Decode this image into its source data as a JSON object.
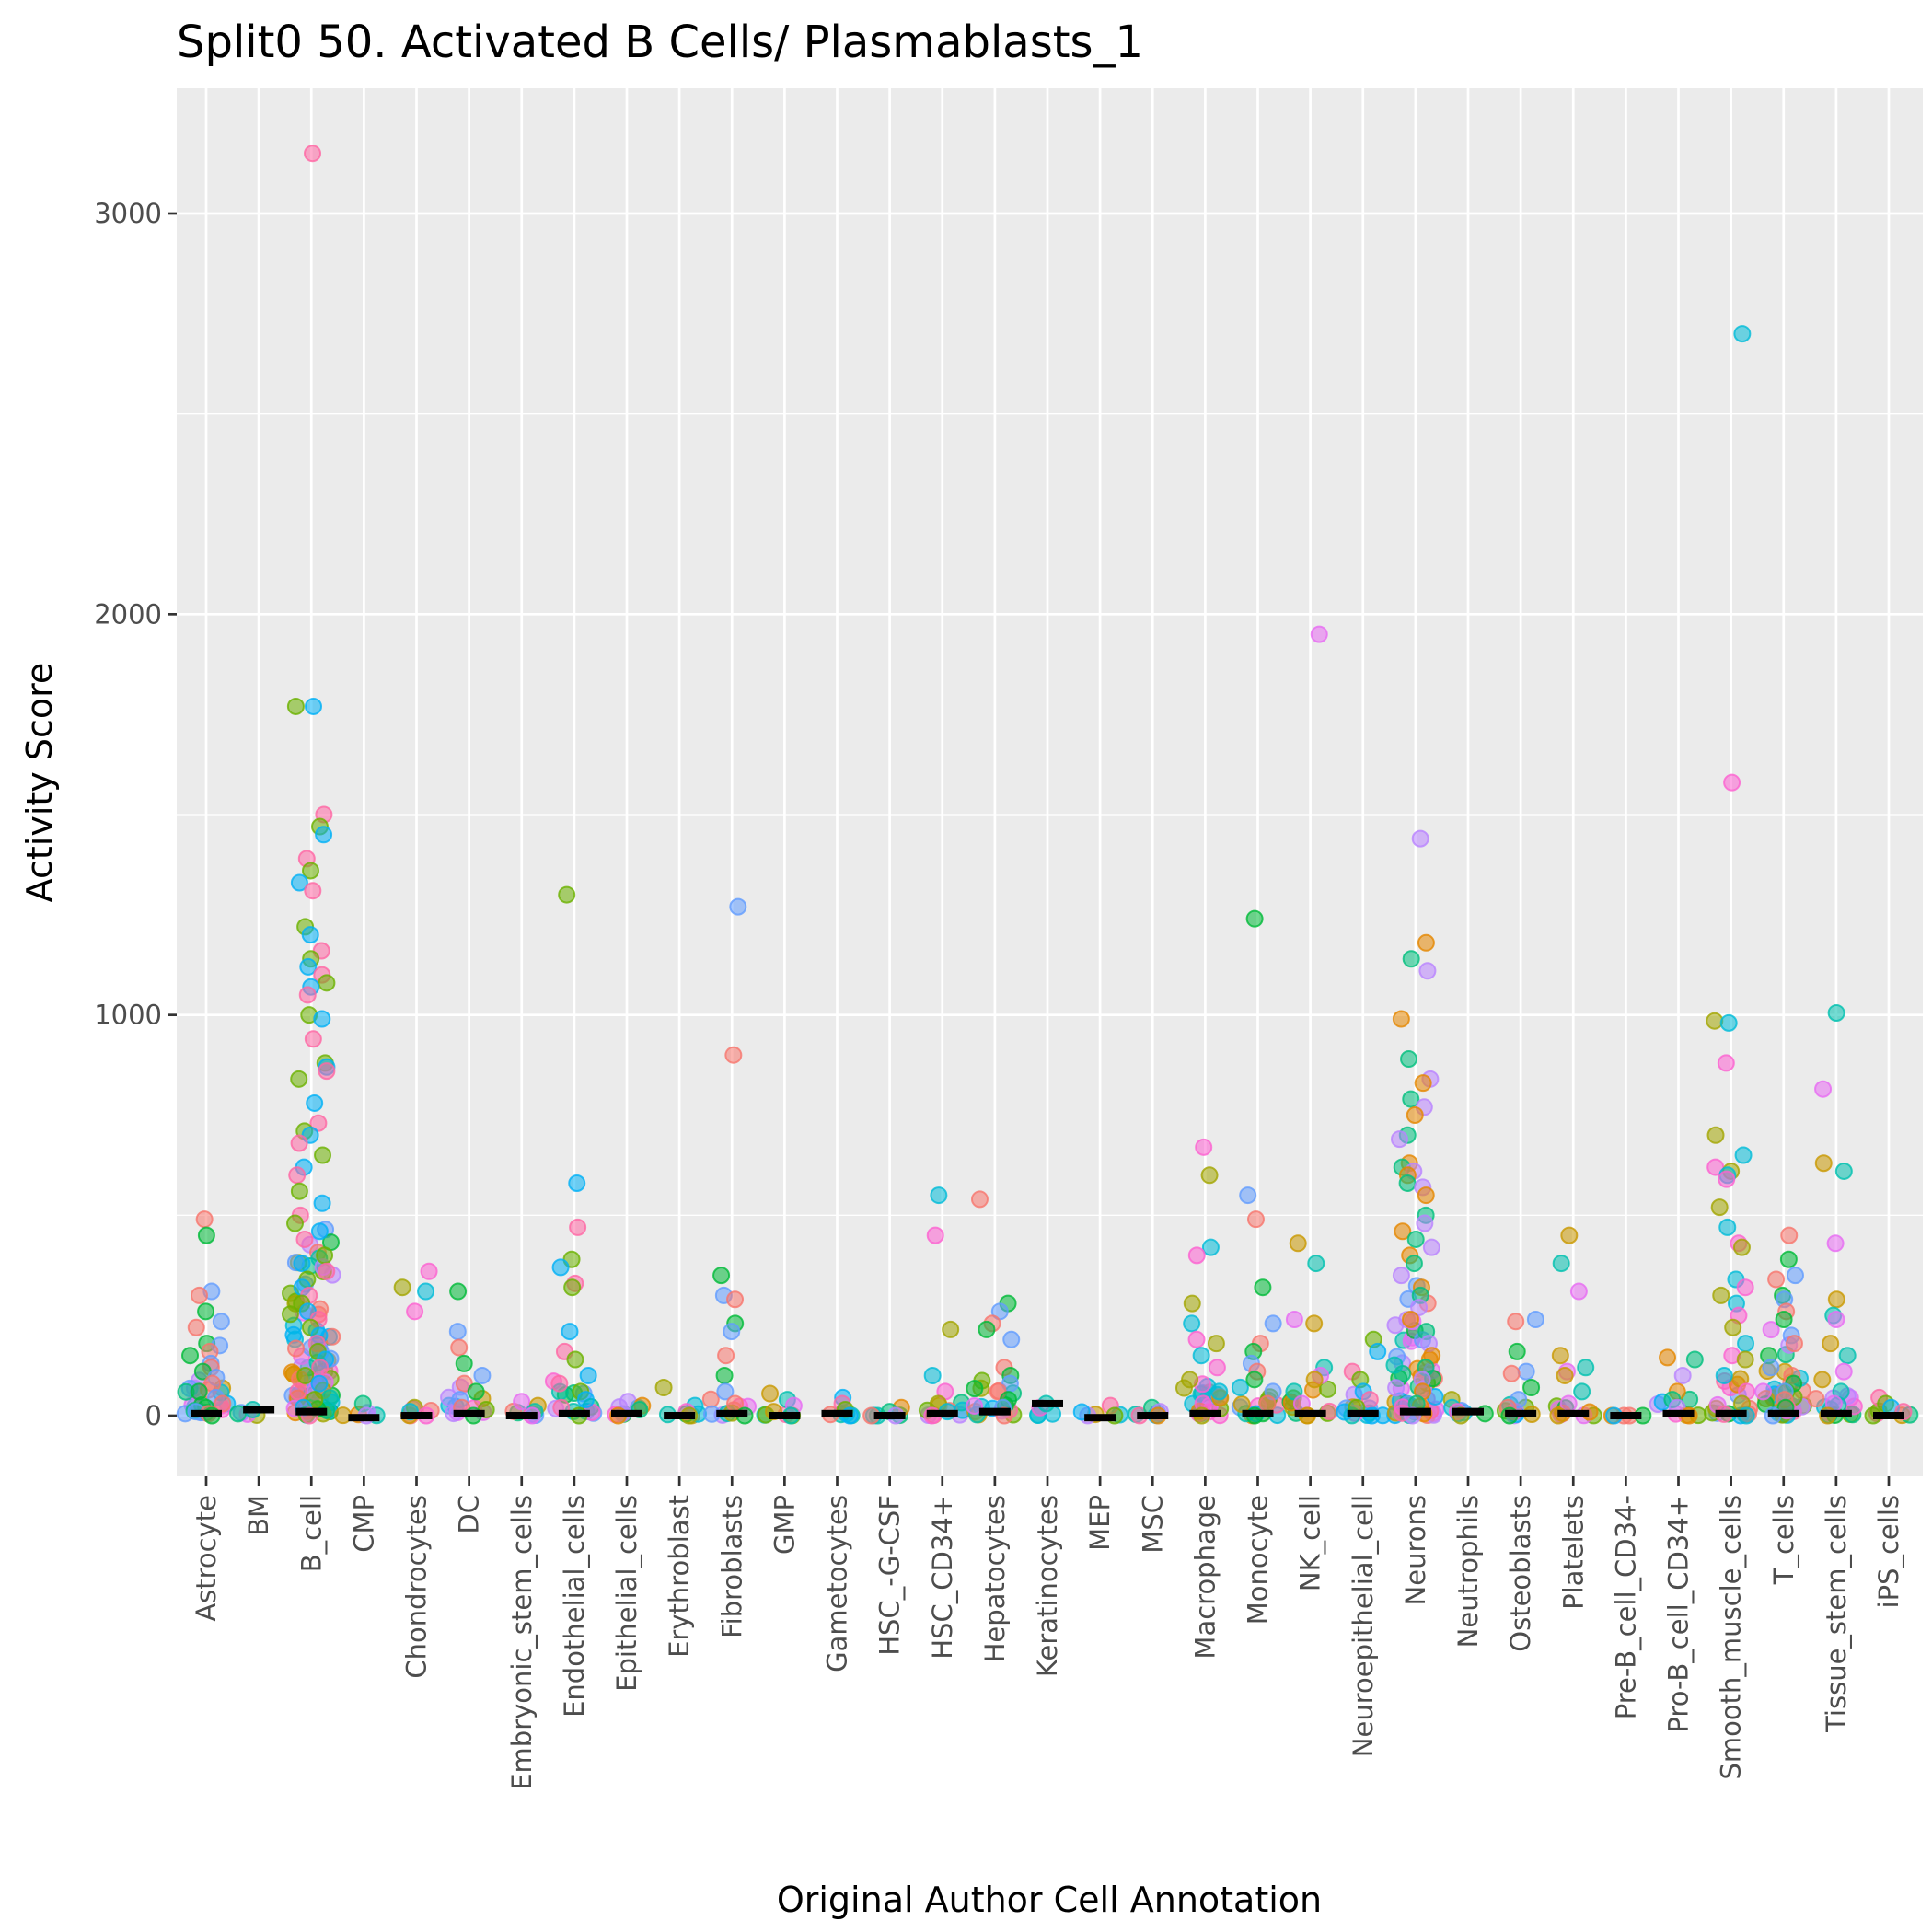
{
  "chart_data": {
    "type": "scatter",
    "title": "Split0 50. Activated B Cells/ Plasmablasts_1",
    "xlabel": "Original Author Cell Annotation",
    "ylabel": "Activity Score",
    "ylim": [
      -150,
      3200
    ],
    "yticks": [
      0,
      1000,
      2000,
      3000
    ],
    "ytick_labels": [
      "0",
      "1000",
      "2000",
      "3000"
    ],
    "grid": true,
    "legend": "none",
    "categories": [
      "Astrocyte",
      "BM",
      "B_cell",
      "CMP",
      "Chondrocytes",
      "DC",
      "Embryonic_stem_cells",
      "Endothelial_cells",
      "Epithelial_cells",
      "Erythroblast",
      "Fibroblasts",
      "GMP",
      "Gametocytes",
      "HSC_-G-CSF",
      "HSC_CD34+",
      "Hepatocytes",
      "Keratinocytes",
      "MEP",
      "MSC",
      "Macrophage",
      "Monocyte",
      "NK_cell",
      "Neuroepithelial_cell",
      "Neurons",
      "Neutrophils",
      "Osteoblasts",
      "Platelets",
      "Pre-B_cell_CD34-",
      "Pro-B_cell_CD34+",
      "Smooth_muscle_cells",
      "T_cells",
      "Tissue_stem_cells",
      "iPS_cells"
    ],
    "median_markers": [
      5,
      15,
      10,
      -5,
      0,
      5,
      0,
      5,
      5,
      0,
      5,
      0,
      5,
      0,
      5,
      10,
      30,
      -5,
      0,
      5,
      5,
      5,
      5,
      10,
      10,
      5,
      5,
      0,
      5,
      5,
      5,
      5,
      0
    ],
    "bulk_height": [
      150,
      15,
      600,
      20,
      30,
      80,
      30,
      90,
      30,
      20,
      60,
      30,
      30,
      20,
      60,
      120,
      30,
      10,
      20,
      150,
      100,
      80,
      80,
      400,
      20,
      60,
      60,
      0,
      50,
      120,
      250,
      100,
      20
    ],
    "palette": [
      "#F8766D",
      "#E58700",
      "#C99800",
      "#A3A500",
      "#6BB100",
      "#00BA38",
      "#00BF7D",
      "#00C0AF",
      "#00BCD8",
      "#00B0F6",
      "#619CFF",
      "#B983FF",
      "#E76BF3",
      "#FD61D1",
      "#FF67A4"
    ],
    "series": [
      {
        "name": "Astrocyte",
        "values": [
          490,
          450,
          310,
          300,
          260,
          235,
          220,
          180,
          175,
          160,
          150,
          130,
          120,
          110,
          95,
          80,
          60,
          45,
          30,
          20,
          10,
          5,
          0
        ]
      },
      {
        "name": "BM",
        "values": [
          15
        ]
      },
      {
        "name": "B_cell",
        "values": [
          3150,
          1770,
          1770,
          1500,
          1470,
          1450,
          1390,
          1360,
          1330,
          1310,
          1220,
          1200,
          1160,
          1140,
          1120,
          1100,
          1080,
          1070,
          1050,
          1000,
          990,
          940,
          880,
          870,
          860,
          840,
          780,
          730,
          710,
          700,
          680,
          650,
          620,
          600,
          560,
          530,
          500,
          480,
          460,
          440,
          400,
          380,
          360,
          340,
          320,
          300,
          280,
          260,
          240,
          220,
          200,
          180,
          160,
          140,
          120,
          100,
          80,
          60,
          40,
          20,
          0
        ]
      },
      {
        "name": "CMP",
        "values": [
          30,
          0
        ]
      },
      {
        "name": "Chondrocytes",
        "values": [
          360,
          320,
          310,
          260,
          20,
          10,
          0
        ]
      },
      {
        "name": "DC",
        "values": [
          310,
          210,
          170,
          130,
          100,
          80,
          60,
          40,
          20,
          0
        ]
      },
      {
        "name": "Embryonic_stem_cells",
        "values": [
          35,
          25,
          10,
          0
        ]
      },
      {
        "name": "Endothelial_cells",
        "values": [
          1300,
          580,
          470,
          390,
          370,
          330,
          320,
          210,
          160,
          140,
          100,
          80,
          60,
          40,
          20,
          0
        ]
      },
      {
        "name": "Epithelial_cells",
        "values": [
          35,
          25,
          15,
          5,
          0
        ]
      },
      {
        "name": "Erythroblast",
        "values": [
          70,
          25,
          10,
          0
        ]
      },
      {
        "name": "Fibroblasts",
        "values": [
          1270,
          900,
          350,
          300,
          290,
          230,
          210,
          150,
          100,
          60,
          30,
          0
        ]
      },
      {
        "name": "GMP",
        "values": [
          55,
          40,
          25,
          10,
          0
        ]
      },
      {
        "name": "Gametocytes",
        "values": [
          45,
          30,
          15,
          0
        ]
      },
      {
        "name": "HSC_-G-CSF",
        "values": [
          20,
          10,
          0
        ]
      },
      {
        "name": "HSC_CD34+",
        "values": [
          550,
          450,
          215,
          100,
          60,
          30,
          10,
          0
        ]
      },
      {
        "name": "Hepatocytes",
        "values": [
          540,
          280,
          260,
          230,
          215,
          190,
          120,
          100,
          80,
          60,
          40,
          20,
          0
        ]
      },
      {
        "name": "Keratinocytes",
        "values": [
          30
        ]
      },
      {
        "name": "MEP",
        "values": [
          25,
          0
        ]
      },
      {
        "name": "MSC",
        "values": [
          20,
          10,
          0
        ]
      },
      {
        "name": "Macrophage",
        "values": [
          670,
          600,
          420,
          400,
          280,
          230,
          190,
          180,
          150,
          120,
          90,
          60,
          30,
          0
        ]
      },
      {
        "name": "Monocyte",
        "values": [
          1240,
          550,
          490,
          320,
          230,
          180,
          160,
          130,
          110,
          90,
          60,
          30,
          0
        ]
      },
      {
        "name": "NK_cell",
        "values": [
          1950,
          430,
          380,
          240,
          230,
          120,
          100,
          90,
          60,
          30,
          0
        ]
      },
      {
        "name": "Neuroepithelial_cell",
        "values": [
          190,
          160,
          110,
          90,
          60,
          40,
          20,
          0
        ]
      },
      {
        "name": "Neurons",
        "values": [
          1440,
          1180,
          1140,
          1110,
          990,
          890,
          840,
          830,
          790,
          770,
          750,
          700,
          690,
          630,
          620,
          610,
          600,
          580,
          570,
          550,
          500,
          480,
          460,
          440,
          420,
          400,
          380,
          350,
          320,
          300,
          270,
          240,
          210,
          180,
          150,
          120,
          90,
          60,
          30,
          0
        ]
      },
      {
        "name": "Neutrophils",
        "values": [
          40,
          20,
          10,
          0
        ]
      },
      {
        "name": "Osteoblasts",
        "values": [
          240,
          235,
          160,
          110,
          105,
          70,
          40,
          20,
          0
        ]
      },
      {
        "name": "Platelets",
        "values": [
          450,
          380,
          310,
          150,
          120,
          110,
          100,
          60,
          30,
          0
        ]
      },
      {
        "name": "Pre-B_cell_CD34-",
        "values": [
          0
        ]
      },
      {
        "name": "Pro-B_cell_CD34+",
        "values": [
          145,
          140,
          100,
          60,
          40,
          20,
          0
        ]
      },
      {
        "name": "Smooth_muscle_cells",
        "values": [
          2700,
          1580,
          985,
          980,
          880,
          700,
          650,
          620,
          610,
          600,
          590,
          520,
          470,
          430,
          420,
          340,
          320,
          300,
          280,
          250,
          220,
          180,
          150,
          140,
          100,
          60,
          30,
          0
        ]
      },
      {
        "name": "T_cells",
        "values": [
          450,
          390,
          350,
          340,
          300,
          290,
          260,
          240,
          200,
          180,
          150,
          120,
          100,
          80,
          60,
          40,
          20,
          0
        ]
      },
      {
        "name": "Tissue_stem_cells",
        "values": [
          1005,
          815,
          630,
          610,
          430,
          290,
          250,
          240,
          180,
          150,
          110,
          90,
          60,
          30,
          0
        ]
      },
      {
        "name": "iPS_cells",
        "values": [
          45,
          30,
          20,
          10,
          0
        ]
      }
    ]
  }
}
